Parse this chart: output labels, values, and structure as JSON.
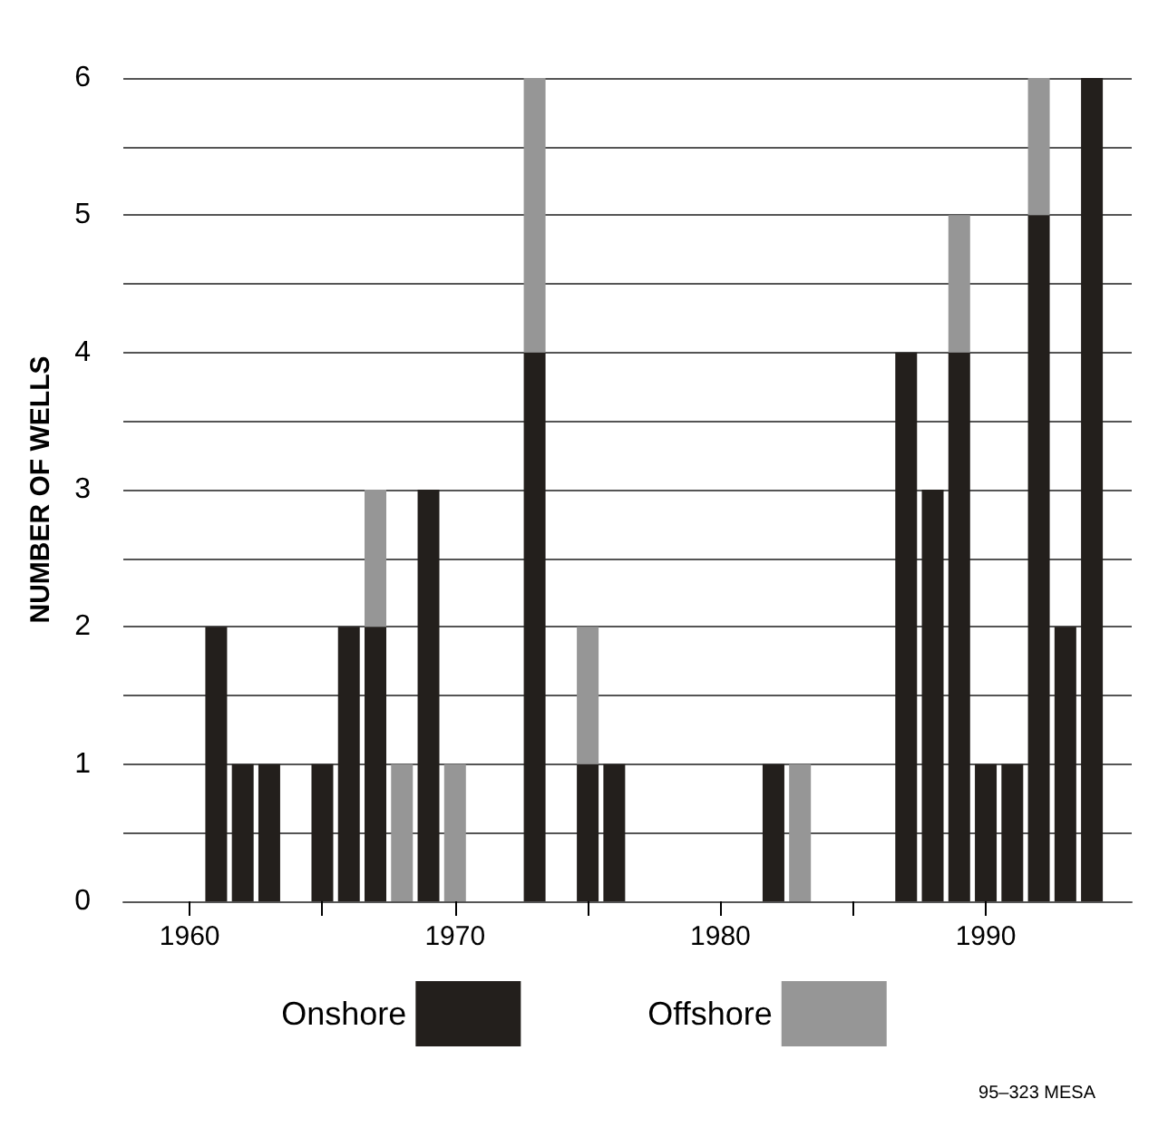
{
  "chart_data": {
    "type": "bar",
    "stacked": true,
    "ylabel": "NUMBER OF WELLS",
    "x": [
      1961,
      1962,
      1963,
      1965,
      1966,
      1967,
      1968,
      1969,
      1970,
      1973,
      1975,
      1976,
      1982,
      1983,
      1987,
      1988,
      1989,
      1990,
      1991,
      1992,
      1993,
      1994
    ],
    "series": [
      {
        "name": "Onshore",
        "color": "#231f1c",
        "values": [
          2,
          1,
          1,
          1,
          2,
          2,
          null,
          3,
          null,
          4,
          1,
          1,
          1,
          null,
          4,
          3,
          4,
          1,
          1,
          5,
          2,
          6
        ]
      },
      {
        "name": "Offshore",
        "color": "#969696",
        "values": [
          null,
          null,
          null,
          null,
          null,
          1,
          1,
          null,
          1,
          2,
          1,
          null,
          null,
          1,
          null,
          null,
          1,
          null,
          null,
          1,
          null,
          null
        ]
      }
    ],
    "xlim": [
      1957.5,
      1995.5
    ],
    "xticks": [
      1960,
      {
        "value": 1965,
        "label": null
      },
      1970,
      {
        "value": 1975,
        "label": null
      },
      1980,
      {
        "value": 1985,
        "label": null
      },
      1990
    ],
    "ylim": [
      0,
      6
    ],
    "yticks": [
      0,
      {
        "value": 0.5,
        "label": null
      },
      1,
      {
        "value": 1.5,
        "label": null
      },
      2,
      {
        "value": 2.5,
        "label": null
      },
      3,
      {
        "value": 3.5,
        "label": null
      },
      4,
      {
        "value": 4.5,
        "label": null
      },
      5,
      {
        "value": 5.5,
        "label": null
      },
      6
    ],
    "grid": "y",
    "legend": "bottom",
    "annotations": [
      "95–323 MESA"
    ]
  }
}
